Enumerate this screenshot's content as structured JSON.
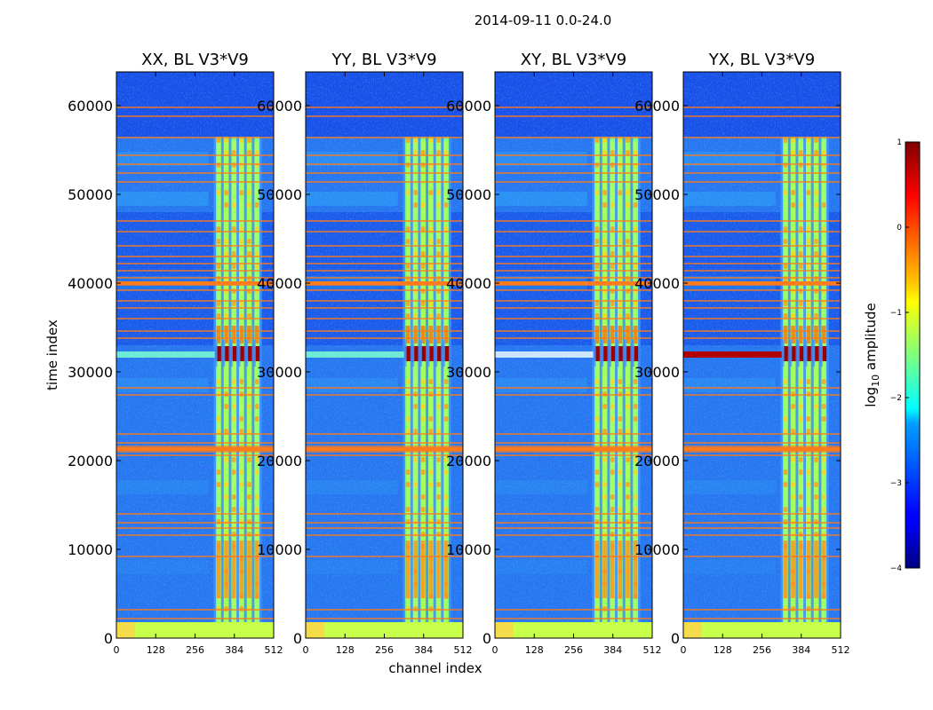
{
  "figure_title": "2014-09-11 0.0-24.0",
  "chart_data": {
    "type": "heatmap",
    "title": "2014-09-11 0.0-24.0",
    "xlabel": "channel index",
    "ylabel": "time index",
    "xlim": [
      0,
      512
    ],
    "ylim": [
      0,
      64000
    ],
    "xticks": [
      "0",
      "128",
      "256",
      "384",
      "512"
    ],
    "yticks": [
      "0",
      "10000",
      "20000",
      "30000",
      "40000",
      "50000",
      "60000"
    ],
    "panels": [
      {
        "name": "XX",
        "title": "XX, BL V3*V9"
      },
      {
        "name": "YY",
        "title": "YY, BL V3*V9"
      },
      {
        "name": "XY",
        "title": "XY, BL V3*V9"
      },
      {
        "name": "YX",
        "title": "YX, BL V3*V9"
      }
    ],
    "colorbar": {
      "label": "log10 amplitude",
      "label_main": "log",
      "label_sub": "10",
      "label_rest": " amplitude",
      "range": [
        -4,
        1
      ],
      "ticks": [
        "1",
        "0",
        "−1",
        "−2",
        "−3",
        "−4"
      ],
      "colormap": "jet"
    }
  }
}
